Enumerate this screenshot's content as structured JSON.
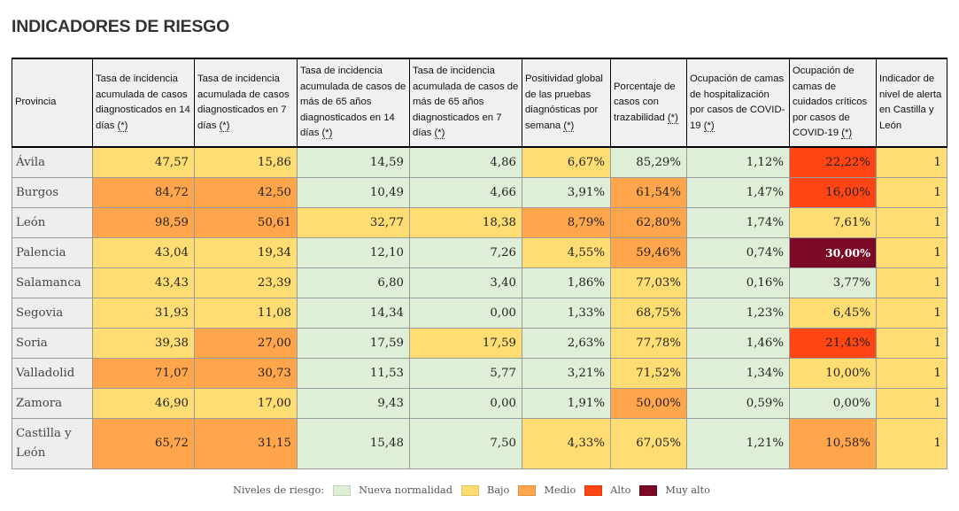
{
  "page": {
    "title": "INDICADORES DE RIESGO"
  },
  "table": {
    "headers": [
      {
        "text": "Provincia",
        "note": ""
      },
      {
        "text": "Tasa de incidencia acumulada de casos diagnosticados en 14 días",
        "note": "(*)"
      },
      {
        "text": "Tasa de incidencia acumulada de casos diagnosticados en 7 días",
        "note": "(*)"
      },
      {
        "text": "Tasa de incidencia acumulada de casos de más de 65 años diagnosticados en 14 días",
        "note": "(*)"
      },
      {
        "text": "Tasa de incidencia acumulada de casos de más de 65 años diagnosticados en 7 días",
        "note": "(*)"
      },
      {
        "text": "Positividad global de las pruebas diagnósticas por semana",
        "note": "(*)"
      },
      {
        "text": "Porcentaje de casos con trazabilidad",
        "note": "(*)"
      },
      {
        "text": "Ocupación de camas de hospitalización por casos de COVID-19",
        "note": "(*)"
      },
      {
        "text": "Ocupación de camas de cuidados críticos por casos de COVID-19",
        "note": "(*)"
      },
      {
        "text": "Indicador de nivel de alerta en Castilla y León",
        "note": ""
      }
    ],
    "rows": [
      {
        "provincia": "Ávila",
        "values": [
          "47,57",
          "15,86",
          "14,59",
          "4,86",
          "6,67%",
          "85,29%",
          "1,12%",
          "22,22%",
          "1"
        ],
        "levels": [
          1,
          1,
          0,
          0,
          1,
          0,
          0,
          3,
          1
        ]
      },
      {
        "provincia": "Burgos",
        "values": [
          "84,72",
          "42,50",
          "10,49",
          "4,66",
          "3,91%",
          "61,54%",
          "1,47%",
          "16,00%",
          "1"
        ],
        "levels": [
          2,
          2,
          0,
          0,
          0,
          2,
          0,
          3,
          1
        ]
      },
      {
        "provincia": "León",
        "values": [
          "98,59",
          "50,61",
          "32,77",
          "18,38",
          "8,79%",
          "62,80%",
          "1,74%",
          "7,61%",
          "1"
        ],
        "levels": [
          2,
          2,
          1,
          1,
          2,
          2,
          0,
          1,
          1
        ]
      },
      {
        "provincia": "Palencia",
        "values": [
          "43,04",
          "19,34",
          "12,10",
          "7,26",
          "4,55%",
          "59,46%",
          "0,74%",
          "30,00%",
          "1"
        ],
        "levels": [
          1,
          1,
          0,
          0,
          1,
          2,
          0,
          4,
          1
        ]
      },
      {
        "provincia": "Salamanca",
        "values": [
          "43,43",
          "23,39",
          "6,80",
          "3,40",
          "1,86%",
          "77,03%",
          "0,16%",
          "3,77%",
          "1"
        ],
        "levels": [
          1,
          1,
          0,
          0,
          0,
          1,
          0,
          0,
          1
        ]
      },
      {
        "provincia": "Segovia",
        "values": [
          "31,93",
          "11,08",
          "14,34",
          "0,00",
          "1,33%",
          "68,75%",
          "1,23%",
          "6,45%",
          "1"
        ],
        "levels": [
          1,
          1,
          0,
          0,
          0,
          1,
          0,
          1,
          1
        ]
      },
      {
        "provincia": "Soria",
        "values": [
          "39,38",
          "27,00",
          "17,59",
          "17,59",
          "2,63%",
          "77,78%",
          "1,46%",
          "21,43%",
          "1"
        ],
        "levels": [
          1,
          2,
          0,
          1,
          0,
          1,
          0,
          3,
          1
        ]
      },
      {
        "provincia": "Valladolid",
        "values": [
          "71,07",
          "30,73",
          "11,53",
          "5,77",
          "3,21%",
          "71,52%",
          "1,34%",
          "10,00%",
          "1"
        ],
        "levels": [
          2,
          2,
          0,
          0,
          0,
          1,
          0,
          1,
          1
        ]
      },
      {
        "provincia": "Zamora",
        "values": [
          "46,90",
          "17,00",
          "9,43",
          "0,00",
          "1,91%",
          "50,00%",
          "0,59%",
          "0,00%",
          "1"
        ],
        "levels": [
          1,
          1,
          0,
          0,
          0,
          2,
          0,
          0,
          1
        ]
      },
      {
        "provincia": "Castilla y León",
        "values": [
          "65,72",
          "31,15",
          "15,48",
          "7,50",
          "4,33%",
          "67,05%",
          "1,21%",
          "10,58%",
          "1"
        ],
        "levels": [
          2,
          2,
          0,
          0,
          1,
          1,
          0,
          2,
          1
        ]
      }
    ]
  },
  "legend": {
    "label": "Niveles de riesgo:",
    "items": [
      {
        "name": "Nueva normalidad",
        "color": "#dfeed6"
      },
      {
        "name": "Bajo",
        "color": "#ffdd72"
      },
      {
        "name": "Medio",
        "color": "#ffa64d"
      },
      {
        "name": "Alto",
        "color": "#ff4513"
      },
      {
        "name": "Muy alto",
        "color": "#7a0a25"
      }
    ]
  }
}
